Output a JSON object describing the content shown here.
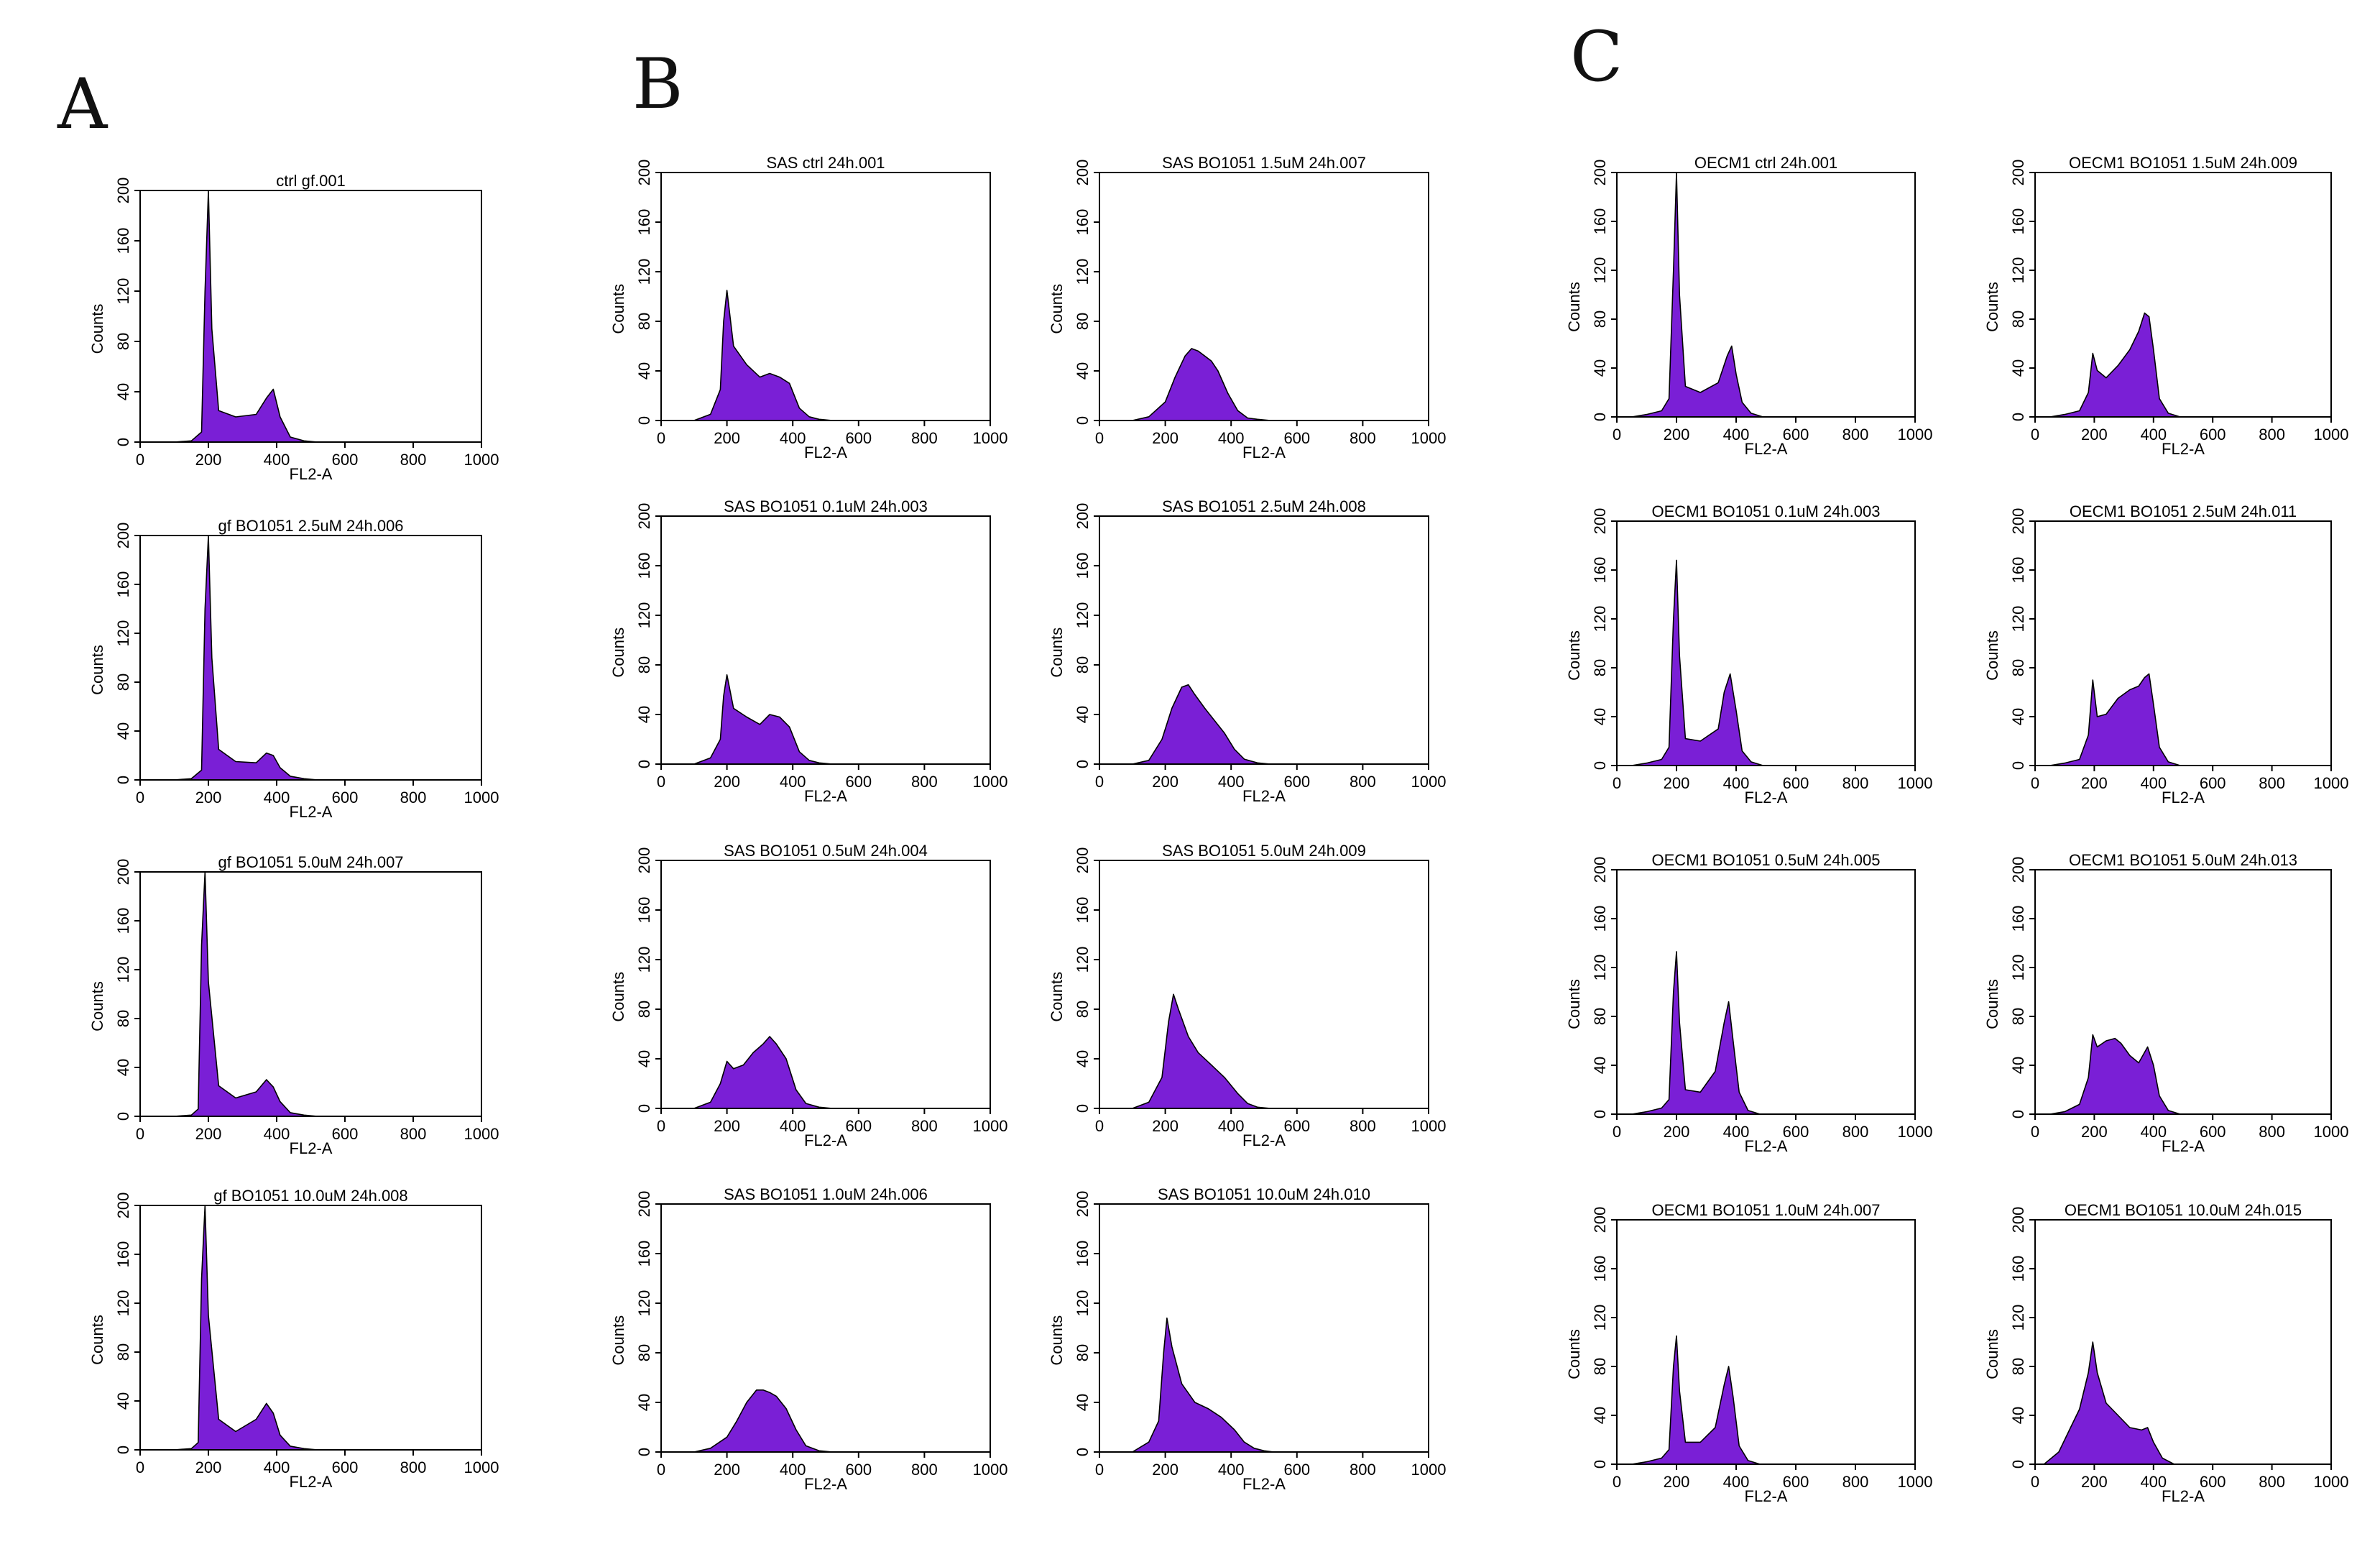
{
  "panels": [
    {
      "letter": "A"
    },
    {
      "letter": "B"
    },
    {
      "letter": "C"
    }
  ],
  "style": {
    "fill_color": "#7a1fd6",
    "outline_color": "#000000"
  },
  "chart_data": [
    {
      "type": "area",
      "panel": "A",
      "title": "ctrl gf.001",
      "xlabel": "FL2-A",
      "ylabel": "Counts",
      "xlim": [
        0,
        1000
      ],
      "ylim": [
        0,
        200
      ],
      "xticks": [
        0,
        200,
        400,
        600,
        800,
        1000
      ],
      "yticks": [
        0,
        40,
        80,
        120,
        160,
        200
      ],
      "x": [
        100,
        150,
        180,
        190,
        200,
        210,
        230,
        280,
        340,
        370,
        390,
        410,
        440,
        480,
        520
      ],
      "y": [
        0,
        1,
        8,
        120,
        200,
        90,
        25,
        20,
        22,
        35,
        42,
        20,
        4,
        1,
        0
      ]
    },
    {
      "type": "area",
      "panel": "A",
      "title": "gf BO1051 2.5uM 24h.006",
      "xlabel": "FL2-A",
      "ylabel": "Counts",
      "xlim": [
        0,
        1000
      ],
      "ylim": [
        0,
        200
      ],
      "xticks": [
        0,
        200,
        400,
        600,
        800,
        1000
      ],
      "yticks": [
        0,
        40,
        80,
        120,
        160,
        200
      ],
      "x": [
        100,
        150,
        180,
        190,
        200,
        210,
        230,
        280,
        340,
        370,
        390,
        410,
        440,
        480,
        520
      ],
      "y": [
        0,
        1,
        8,
        140,
        200,
        100,
        25,
        15,
        14,
        22,
        20,
        10,
        3,
        1,
        0
      ]
    },
    {
      "type": "area",
      "panel": "A",
      "title": "gf BO1051 5.0uM 24h.007",
      "xlabel": "FL2-A",
      "ylabel": "Counts",
      "xlim": [
        0,
        1000
      ],
      "ylim": [
        0,
        200
      ],
      "xticks": [
        0,
        200,
        400,
        600,
        800,
        1000
      ],
      "yticks": [
        0,
        40,
        80,
        120,
        160,
        200
      ],
      "x": [
        100,
        150,
        170,
        180,
        190,
        200,
        230,
        280,
        340,
        370,
        390,
        410,
        440,
        480,
        520
      ],
      "y": [
        0,
        1,
        6,
        140,
        200,
        110,
        25,
        15,
        20,
        30,
        24,
        12,
        3,
        1,
        0
      ]
    },
    {
      "type": "area",
      "panel": "A",
      "title": "gf BO1051 10.0uM 24h.008",
      "xlabel": "FL2-A",
      "ylabel": "Counts",
      "xlim": [
        0,
        1000
      ],
      "ylim": [
        0,
        200
      ],
      "xticks": [
        0,
        200,
        400,
        600,
        800,
        1000
      ],
      "yticks": [
        0,
        40,
        80,
        120,
        160,
        200
      ],
      "x": [
        100,
        150,
        170,
        180,
        190,
        200,
        230,
        280,
        340,
        370,
        390,
        410,
        440,
        480,
        520
      ],
      "y": [
        0,
        1,
        6,
        140,
        200,
        110,
        25,
        15,
        25,
        38,
        30,
        12,
        3,
        1,
        0
      ]
    },
    {
      "type": "area",
      "panel": "B",
      "title": "SAS ctrl 24h.001",
      "xlabel": "FL2-A",
      "ylabel": "Counts",
      "xlim": [
        0,
        1000
      ],
      "ylim": [
        0,
        200
      ],
      "xticks": [
        0,
        200,
        400,
        600,
        800,
        1000
      ],
      "yticks": [
        0,
        40,
        80,
        120,
        160,
        200
      ],
      "x": [
        100,
        150,
        180,
        190,
        200,
        220,
        260,
        300,
        330,
        360,
        390,
        420,
        450,
        480,
        520
      ],
      "y": [
        0,
        5,
        25,
        80,
        105,
        60,
        45,
        35,
        38,
        35,
        30,
        10,
        3,
        1,
        0
      ]
    },
    {
      "type": "area",
      "panel": "B",
      "title": "SAS BO1051 0.1uM 24h.003",
      "xlabel": "FL2-A",
      "ylabel": "Counts",
      "xlim": [
        0,
        1000
      ],
      "ylim": [
        0,
        200
      ],
      "xticks": [
        0,
        200,
        400,
        600,
        800,
        1000
      ],
      "yticks": [
        0,
        40,
        80,
        120,
        160,
        200
      ],
      "x": [
        100,
        150,
        180,
        190,
        200,
        220,
        260,
        300,
        330,
        360,
        390,
        420,
        450,
        480,
        520
      ],
      "y": [
        0,
        5,
        20,
        55,
        72,
        45,
        38,
        32,
        40,
        38,
        30,
        10,
        3,
        1,
        0
      ]
    },
    {
      "type": "area",
      "panel": "B",
      "title": "SAS BO1051 0.5uM 24h.004",
      "xlabel": "FL2-A",
      "ylabel": "Counts",
      "xlim": [
        0,
        1000
      ],
      "ylim": [
        0,
        200
      ],
      "xticks": [
        0,
        200,
        400,
        600,
        800,
        1000
      ],
      "yticks": [
        0,
        40,
        80,
        120,
        160,
        200
      ],
      "x": [
        100,
        150,
        180,
        200,
        220,
        250,
        280,
        310,
        330,
        350,
        380,
        410,
        440,
        480,
        520
      ],
      "y": [
        0,
        5,
        20,
        38,
        32,
        35,
        45,
        52,
        58,
        52,
        40,
        15,
        4,
        1,
        0
      ]
    },
    {
      "type": "area",
      "panel": "B",
      "title": "SAS BO1051 1.0uM 24h.006",
      "xlabel": "FL2-A",
      "ylabel": "Counts",
      "xlim": [
        0,
        1000
      ],
      "ylim": [
        0,
        200
      ],
      "xticks": [
        0,
        200,
        400,
        600,
        800,
        1000
      ],
      "yticks": [
        0,
        40,
        80,
        120,
        160,
        200
      ],
      "x": [
        100,
        150,
        200,
        230,
        260,
        290,
        310,
        330,
        350,
        380,
        410,
        440,
        480,
        520
      ],
      "y": [
        0,
        3,
        12,
        25,
        40,
        50,
        50,
        48,
        45,
        35,
        18,
        5,
        1,
        0
      ]
    },
    {
      "type": "area",
      "panel": "B",
      "title": "SAS BO1051 1.5uM 24h.007",
      "xlabel": "FL2-A",
      "ylabel": "Counts",
      "xlim": [
        0,
        1000
      ],
      "ylim": [
        0,
        200
      ],
      "xticks": [
        0,
        200,
        400,
        600,
        800,
        1000
      ],
      "yticks": [
        0,
        40,
        80,
        120,
        160,
        200
      ],
      "x": [
        100,
        150,
        200,
        230,
        260,
        280,
        300,
        320,
        340,
        360,
        390,
        420,
        450,
        480,
        520
      ],
      "y": [
        0,
        3,
        15,
        35,
        52,
        58,
        56,
        52,
        48,
        40,
        22,
        8,
        2,
        1,
        0
      ]
    },
    {
      "type": "area",
      "panel": "B",
      "title": "SAS BO1051 2.5uM 24h.008",
      "xlabel": "FL2-A",
      "ylabel": "Counts",
      "xlim": [
        0,
        1000
      ],
      "ylim": [
        0,
        200
      ],
      "xticks": [
        0,
        200,
        400,
        600,
        800,
        1000
      ],
      "yticks": [
        0,
        40,
        80,
        120,
        160,
        200
      ],
      "x": [
        100,
        150,
        190,
        220,
        250,
        270,
        290,
        320,
        350,
        380,
        410,
        440,
        480,
        520
      ],
      "y": [
        0,
        3,
        20,
        45,
        62,
        64,
        56,
        45,
        35,
        25,
        12,
        4,
        1,
        0
      ]
    },
    {
      "type": "area",
      "panel": "B",
      "title": "SAS BO1051 5.0uM 24h.009",
      "xlabel": "FL2-A",
      "ylabel": "Counts",
      "xlim": [
        0,
        1000
      ],
      "ylim": [
        0,
        200
      ],
      "xticks": [
        0,
        200,
        400,
        600,
        800,
        1000
      ],
      "yticks": [
        0,
        40,
        80,
        120,
        160,
        200
      ],
      "x": [
        100,
        150,
        190,
        210,
        225,
        240,
        270,
        300,
        340,
        380,
        420,
        450,
        480,
        520
      ],
      "y": [
        0,
        5,
        25,
        70,
        92,
        80,
        58,
        45,
        35,
        25,
        12,
        4,
        1,
        0
      ]
    },
    {
      "type": "area",
      "panel": "B",
      "title": "SAS BO1051 10.0uM 24h.010",
      "xlabel": "FL2-A",
      "ylabel": "Counts",
      "xlim": [
        0,
        1000
      ],
      "ylim": [
        0,
        200
      ],
      "xticks": [
        0,
        200,
        400,
        600,
        800,
        1000
      ],
      "yticks": [
        0,
        40,
        80,
        120,
        160,
        200
      ],
      "x": [
        100,
        150,
        180,
        195,
        205,
        220,
        250,
        290,
        330,
        370,
        410,
        440,
        470,
        500,
        530
      ],
      "y": [
        0,
        8,
        25,
        80,
        108,
        85,
        55,
        40,
        35,
        28,
        18,
        8,
        3,
        1,
        0
      ]
    },
    {
      "type": "area",
      "panel": "C",
      "title": "OECM1 ctrl 24h.001",
      "xlabel": "FL2-A",
      "ylabel": "Counts",
      "xlim": [
        0,
        1000
      ],
      "ylim": [
        0,
        200
      ],
      "xticks": [
        0,
        200,
        400,
        600,
        800,
        1000
      ],
      "yticks": [
        0,
        40,
        80,
        120,
        160,
        200
      ],
      "x": [
        50,
        100,
        150,
        175,
        190,
        200,
        210,
        230,
        280,
        340,
        370,
        385,
        400,
        420,
        450,
        490
      ],
      "y": [
        0,
        2,
        5,
        15,
        120,
        200,
        100,
        25,
        20,
        28,
        50,
        58,
        35,
        12,
        3,
        0
      ]
    },
    {
      "type": "area",
      "panel": "C",
      "title": "OECM1 BO1051 0.1uM 24h.003",
      "xlabel": "FL2-A",
      "ylabel": "Counts",
      "xlim": [
        0,
        1000
      ],
      "ylim": [
        0,
        200
      ],
      "xticks": [
        0,
        200,
        400,
        600,
        800,
        1000
      ],
      "yticks": [
        0,
        40,
        80,
        120,
        160,
        200
      ],
      "x": [
        50,
        100,
        150,
        175,
        190,
        200,
        210,
        230,
        280,
        340,
        360,
        380,
        400,
        420,
        450,
        490
      ],
      "y": [
        0,
        2,
        5,
        15,
        120,
        168,
        90,
        22,
        20,
        30,
        60,
        75,
        45,
        12,
        3,
        0
      ]
    },
    {
      "type": "area",
      "panel": "C",
      "title": "OECM1 BO1051 0.5uM 24h.005",
      "xlabel": "FL2-A",
      "ylabel": "Counts",
      "xlim": [
        0,
        1000
      ],
      "ylim": [
        0,
        200
      ],
      "xticks": [
        0,
        200,
        400,
        600,
        800,
        1000
      ],
      "yticks": [
        0,
        40,
        80,
        120,
        160,
        200
      ],
      "x": [
        50,
        100,
        150,
        175,
        190,
        200,
        210,
        230,
        280,
        330,
        360,
        375,
        390,
        410,
        440,
        480
      ],
      "y": [
        0,
        2,
        5,
        12,
        100,
        133,
        75,
        20,
        18,
        35,
        75,
        92,
        60,
        18,
        3,
        0
      ]
    },
    {
      "type": "area",
      "panel": "C",
      "title": "OECM1 BO1051 1.0uM 24h.007",
      "xlabel": "FL2-A",
      "ylabel": "Counts",
      "xlim": [
        0,
        1000
      ],
      "ylim": [
        0,
        200
      ],
      "xticks": [
        0,
        200,
        400,
        600,
        800,
        1000
      ],
      "yticks": [
        0,
        40,
        80,
        120,
        160,
        200
      ],
      "x": [
        50,
        100,
        150,
        175,
        190,
        200,
        210,
        230,
        280,
        330,
        360,
        375,
        390,
        410,
        440,
        480
      ],
      "y": [
        0,
        2,
        5,
        12,
        80,
        105,
        60,
        18,
        18,
        30,
        65,
        80,
        55,
        15,
        3,
        0
      ]
    },
    {
      "type": "area",
      "panel": "C",
      "title": "OECM1 BO1051 1.5uM 24h.009",
      "xlabel": "FL2-A",
      "ylabel": "Counts",
      "xlim": [
        0,
        1000
      ],
      "ylim": [
        0,
        200
      ],
      "xticks": [
        0,
        200,
        400,
        600,
        800,
        1000
      ],
      "yticks": [
        0,
        40,
        80,
        120,
        160,
        200
      ],
      "x": [
        50,
        100,
        150,
        180,
        195,
        210,
        240,
        280,
        320,
        350,
        370,
        385,
        400,
        420,
        450,
        490
      ],
      "y": [
        0,
        2,
        5,
        20,
        52,
        38,
        32,
        42,
        55,
        70,
        85,
        82,
        55,
        15,
        3,
        0
      ]
    },
    {
      "type": "area",
      "panel": "C",
      "title": "OECM1 BO1051 2.5uM 24h.011",
      "xlabel": "FL2-A",
      "ylabel": "Counts",
      "xlim": [
        0,
        1000
      ],
      "ylim": [
        0,
        200
      ],
      "xticks": [
        0,
        200,
        400,
        600,
        800,
        1000
      ],
      "yticks": [
        0,
        40,
        80,
        120,
        160,
        200
      ],
      "x": [
        50,
        100,
        150,
        180,
        195,
        210,
        240,
        280,
        320,
        350,
        370,
        385,
        400,
        420,
        450,
        490
      ],
      "y": [
        0,
        2,
        5,
        25,
        70,
        40,
        42,
        55,
        62,
        65,
        72,
        75,
        50,
        15,
        3,
        0
      ]
    },
    {
      "type": "area",
      "panel": "C",
      "title": "OECM1 BO1051 5.0uM 24h.013",
      "xlabel": "FL2-A",
      "ylabel": "Counts",
      "xlim": [
        0,
        1000
      ],
      "ylim": [
        0,
        200
      ],
      "xticks": [
        0,
        200,
        400,
        600,
        800,
        1000
      ],
      "yticks": [
        0,
        40,
        80,
        120,
        160,
        200
      ],
      "x": [
        50,
        100,
        150,
        180,
        195,
        210,
        240,
        270,
        290,
        320,
        350,
        380,
        400,
        420,
        450,
        490
      ],
      "y": [
        0,
        2,
        8,
        30,
        65,
        55,
        60,
        62,
        58,
        48,
        42,
        55,
        40,
        15,
        3,
        0
      ]
    },
    {
      "type": "area",
      "panel": "C",
      "title": "OECM1 BO1051 10.0uM 24h.015",
      "xlabel": "FL2-A",
      "ylabel": "Counts",
      "xlim": [
        0,
        1000
      ],
      "ylim": [
        0,
        200
      ],
      "xticks": [
        0,
        200,
        400,
        600,
        800,
        1000
      ],
      "yticks": [
        0,
        40,
        80,
        120,
        160,
        200
      ],
      "x": [
        30,
        80,
        120,
        150,
        180,
        195,
        210,
        240,
        280,
        320,
        360,
        380,
        400,
        430,
        470
      ],
      "y": [
        0,
        10,
        30,
        45,
        75,
        100,
        75,
        50,
        40,
        30,
        28,
        30,
        18,
        5,
        0
      ]
    }
  ]
}
